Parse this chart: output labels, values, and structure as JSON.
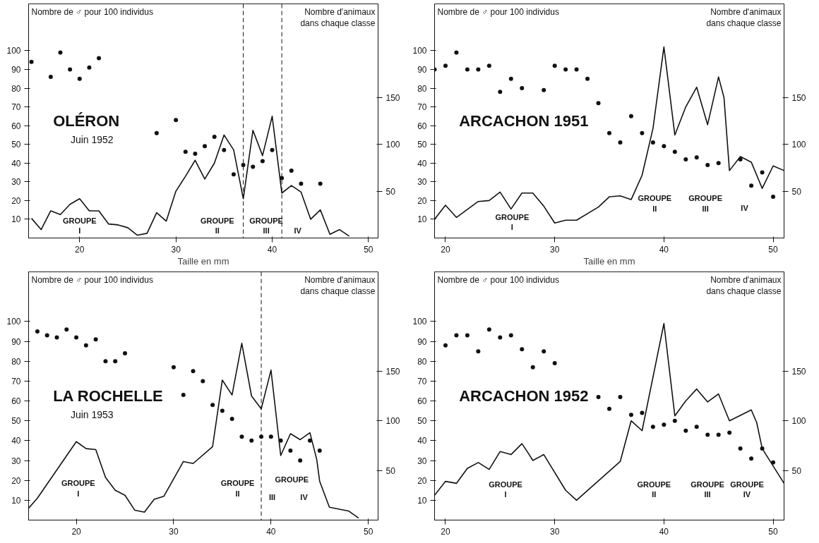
{
  "chart_data": [
    {
      "type": "line",
      "title": "OLÉRON",
      "subtitle": "Juin 1952",
      "xlabel": "Taille en mm",
      "ylabel": "Nombre de ♂ pour 100 individus",
      "y2label": "Nombre d'animaux dans chaque classe",
      "xlim": [
        14.7,
        51
      ],
      "xticks": [
        20,
        30,
        40,
        50
      ],
      "ylim": [
        0,
        125
      ],
      "yticks": [
        10,
        20,
        30,
        40,
        50,
        60,
        70,
        80,
        90,
        100
      ],
      "y2lim": [
        0,
        250
      ],
      "y2ticks": [
        50,
        100,
        150
      ],
      "series": [
        {
          "axis": "y2",
          "color": "#111111",
          "marker": "none",
          "line_style": "solid",
          "x": [
            15,
            16,
            17,
            18,
            19,
            20,
            21,
            22,
            23,
            24,
            25,
            26,
            27,
            28,
            29,
            30,
            31,
            32,
            33,
            34,
            35,
            36,
            37,
            38,
            39,
            40,
            41,
            42,
            43,
            44,
            45,
            46,
            47,
            48
          ],
          "values": [
            21,
            9,
            29,
            25,
            36,
            42,
            29,
            29,
            15,
            14,
            11,
            3,
            5,
            27,
            18,
            50,
            66,
            83,
            63,
            80,
            110,
            94,
            42,
            115,
            88,
            130,
            48,
            56,
            49,
            20,
            30,
            4,
            9,
            2
          ]
        },
        {
          "type": "scatter",
          "color": "#111111",
          "marker": "circle",
          "x": [
            15,
            17,
            18,
            19,
            20,
            21,
            22,
            28,
            30,
            31,
            32,
            33,
            34,
            35,
            36,
            37,
            38,
            39,
            40,
            41,
            42,
            43,
            45
          ],
          "values": [
            94,
            86,
            99,
            90,
            85,
            91,
            96,
            56,
            63,
            46,
            45,
            49,
            54,
            47,
            34,
            39,
            38,
            41,
            47,
            32,
            36,
            29,
            29
          ]
        }
      ],
      "ref_lines": [
        {
          "axis": "x",
          "value": 37,
          "line_style": "dashed"
        },
        {
          "axis": "x",
          "value": 41,
          "line_style": "dashed"
        }
      ],
      "annotations": [
        "GROUPE\nI",
        "GROUPE\nII",
        "GROUPE",
        "III",
        "IV"
      ]
    },
    {
      "type": "line",
      "title": "ARCACHON  1951",
      "xlabel": "Taille en mm",
      "ylabel": "Nombre de ♂ pour 100 individus",
      "y2label": "Nombre d'animaux dans chaque classe",
      "xlim": [
        19,
        51
      ],
      "xticks": [
        20,
        30,
        40,
        50
      ],
      "ylim": [
        0,
        125
      ],
      "yticks": [
        10,
        20,
        30,
        40,
        50,
        60,
        70,
        80,
        90,
        100
      ],
      "y2lim": [
        0,
        250
      ],
      "y2ticks": [
        50,
        100,
        150
      ],
      "series": [
        {
          "axis": "y2",
          "color": "#111111",
          "marker": "none",
          "line_style": "solid",
          "x": [
            19,
            20,
            21,
            23,
            24,
            25,
            26,
            27,
            28,
            29,
            30,
            31,
            32,
            34,
            35,
            36,
            37,
            38,
            39,
            40,
            41,
            42,
            43,
            44,
            45,
            45.5,
            46,
            47,
            48,
            49,
            50,
            51
          ],
          "values": [
            20,
            35,
            22,
            39,
            40,
            49,
            31,
            48,
            48,
            34,
            16,
            19,
            19,
            33,
            44,
            45,
            41,
            67,
            117,
            204,
            110,
            140,
            161,
            121,
            172,
            150,
            72,
            87,
            81,
            53,
            77,
            72
          ]
        },
        {
          "type": "scatter",
          "color": "#111111",
          "marker": "circle",
          "x": [
            19,
            20,
            21,
            22,
            23,
            24,
            25,
            26,
            27,
            29,
            30,
            31,
            32,
            33,
            34,
            35,
            36,
            37,
            38,
            39,
            40,
            41,
            42,
            43,
            44,
            45,
            47,
            48,
            49,
            50
          ],
          "values": [
            90,
            92,
            99,
            90,
            90,
            92,
            78,
            85,
            80,
            79,
            92,
            90,
            90,
            85,
            72,
            56,
            51,
            65,
            56,
            51,
            49,
            46,
            42,
            43,
            39,
            40,
            42,
            28,
            35,
            22
          ]
        }
      ],
      "annotations": [
        "GROUPE\nI",
        "GROUPE\nII",
        "GROUPE\nIII",
        "IV"
      ]
    },
    {
      "type": "line",
      "title": "LA ROCHELLE",
      "subtitle": "Juin 1953",
      "ylabel": "Nombre de ♂ pour 100 individus",
      "y2label": "Nombre d'animaux dans chaque classe",
      "xlim": [
        15.1,
        51
      ],
      "xticks": [
        20,
        30,
        40,
        50
      ],
      "ylim": [
        0,
        125
      ],
      "yticks": [
        10,
        20,
        30,
        40,
        50,
        60,
        70,
        80,
        90,
        100
      ],
      "y2lim": [
        0,
        250
      ],
      "y2ticks": [
        50,
        100,
        150
      ],
      "series": [
        {
          "axis": "y2",
          "color": "#111111",
          "marker": "none",
          "line_style": "solid",
          "x": [
            15.1,
            16,
            20,
            21,
            22,
            23,
            24,
            25,
            26,
            27,
            28,
            29,
            31,
            32,
            34,
            35,
            36,
            37,
            38,
            39,
            40,
            41,
            42,
            43,
            44,
            44.7,
            45,
            46,
            47,
            48,
            49
          ],
          "values": [
            12,
            22,
            79,
            72,
            71,
            43,
            30,
            25,
            10,
            8,
            21,
            24,
            59,
            57,
            74,
            141,
            126,
            178,
            125,
            112,
            151,
            65,
            87,
            81,
            88,
            61,
            39,
            13,
            11,
            9,
            2
          ]
        },
        {
          "type": "scatter",
          "color": "#111111",
          "marker": "circle",
          "x": [
            16,
            17,
            18,
            19,
            20,
            21,
            22,
            23,
            24,
            25,
            30,
            31,
            32,
            33,
            34,
            35,
            36,
            37,
            38,
            39,
            40,
            41,
            42,
            43,
            44,
            45
          ],
          "values": [
            95,
            93,
            92,
            96,
            92,
            88,
            91,
            80,
            80,
            84,
            77,
            63,
            75,
            70,
            58,
            55,
            51,
            42,
            40,
            42,
            42,
            40,
            35,
            30,
            40,
            35
          ]
        }
      ],
      "ref_lines": [
        {
          "axis": "x",
          "value": 39,
          "line_style": "dashed"
        }
      ],
      "annotations": [
        "GROUPE\nI",
        "GROUPE\nII",
        "GROUPE",
        "III",
        "IV"
      ]
    },
    {
      "type": "line",
      "title": "ARCACHON 1952",
      "ylabel": "Nombre de ♂ pour 100 individus",
      "y2label": "Nombre d'animaux dans chaque classe",
      "xlim": [
        19,
        51
      ],
      "xticks": [
        20,
        30,
        40,
        50
      ],
      "ylim": [
        0,
        125
      ],
      "yticks": [
        10,
        20,
        30,
        40,
        50,
        60,
        70,
        80,
        90,
        100
      ],
      "y2lim": [
        0,
        250
      ],
      "y2ticks": [
        50,
        100,
        150
      ],
      "series": [
        {
          "axis": "y2",
          "color": "#111111",
          "marker": "none",
          "line_style": "solid",
          "x": [
            19,
            20,
            21,
            22,
            23,
            24,
            25,
            26,
            27,
            27.6,
            28,
            29,
            31,
            32,
            36,
            37,
            38,
            40,
            41,
            42,
            43,
            44,
            45,
            46,
            48,
            48.5,
            49,
            51
          ],
          "values": [
            25,
            39,
            37,
            52,
            58,
            51,
            69,
            66,
            77,
            67,
            60,
            66,
            30,
            20,
            59,
            100,
            90,
            198,
            105,
            120,
            132,
            119,
            127,
            100,
            111,
            98,
            72,
            37
          ]
        },
        {
          "type": "scatter",
          "color": "#111111",
          "marker": "circle",
          "x": [
            20,
            21,
            22,
            23,
            24,
            25,
            26,
            27,
            28,
            29,
            30,
            34,
            35,
            36,
            37,
            38,
            39,
            40,
            41,
            42,
            43,
            44,
            45,
            46,
            47,
            48,
            49,
            50
          ],
          "values": [
            88,
            93,
            93,
            85,
            96,
            92,
            93,
            86,
            77,
            85,
            79,
            62,
            56,
            62,
            53,
            54,
            47,
            48,
            50,
            45,
            47,
            43,
            43,
            44,
            36,
            31,
            36,
            29
          ]
        }
      ],
      "annotations": [
        "GROUPE\nI",
        "GROUPE\nII",
        "GROUPE\nIII",
        "GROUPE\nIV"
      ]
    }
  ]
}
